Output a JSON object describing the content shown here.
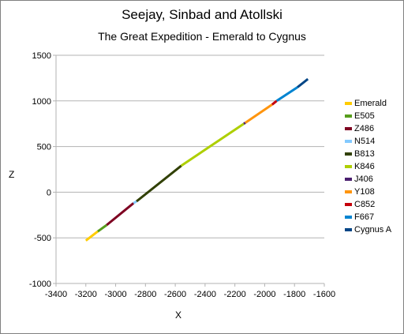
{
  "chart_data": {
    "type": "line",
    "title": "Seejay, Sinbad and Atollski",
    "subtitle": "The Great Expedition - Emerald to Cygnus",
    "xlabel": "X",
    "ylabel": "Z",
    "xlim": [
      -3400,
      -1600
    ],
    "ylim": [
      -1000,
      1500
    ],
    "x_ticks": [
      -3400,
      -3200,
      -3000,
      -2800,
      -2600,
      -2400,
      -2200,
      -2000,
      -1800,
      -1600
    ],
    "y_ticks": [
      -1000,
      -500,
      0,
      500,
      1000,
      1500
    ],
    "grid": "horizontal",
    "legend_position": "right",
    "series": [
      {
        "name": "Emerald",
        "color": "#FFCC00",
        "x": [
          -3200,
          -3120
        ],
        "y": [
          -530,
          -430
        ]
      },
      {
        "name": "E505",
        "color": "#579D1C",
        "x": [
          -3120,
          -3060
        ],
        "y": [
          -430,
          -360
        ]
      },
      {
        "name": "Z486",
        "color": "#7E0021",
        "x": [
          -3060,
          -2880
        ],
        "y": [
          -360,
          -120
        ]
      },
      {
        "name": "N514",
        "color": "#83CAFF",
        "x": [
          -2880,
          -2860
        ],
        "y": [
          -120,
          -100
        ]
      },
      {
        "name": "B813",
        "color": "#314004",
        "x": [
          -2860,
          -2560
        ],
        "y": [
          -100,
          290
        ]
      },
      {
        "name": "K846",
        "color": "#AECF00",
        "x": [
          -2560,
          -2140
        ],
        "y": [
          290,
          750
        ]
      },
      {
        "name": "J406",
        "color": "#4B1F6F",
        "x": [
          -2140,
          -2130
        ],
        "y": [
          750,
          760
        ]
      },
      {
        "name": "Y108",
        "color": "#FF950E",
        "x": [
          -2130,
          -1950
        ],
        "y": [
          760,
          960
        ]
      },
      {
        "name": "C852",
        "color": "#C5000B",
        "x": [
          -1950,
          -1920
        ],
        "y": [
          960,
          1000
        ]
      },
      {
        "name": "F667",
        "color": "#0084D1",
        "x": [
          -1920,
          -1780
        ],
        "y": [
          1000,
          1150
        ]
      },
      {
        "name": "Cygnus A",
        "color": "#004586",
        "x": [
          -1780,
          -1710
        ],
        "y": [
          1150,
          1240
        ]
      }
    ]
  }
}
